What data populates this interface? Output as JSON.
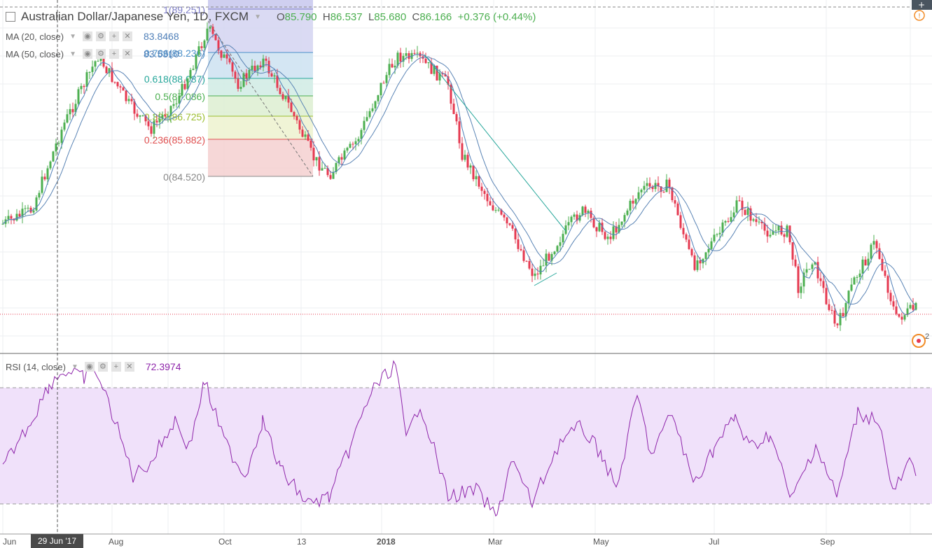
{
  "header": {
    "symbol_title": "Australian Dollar/Japanese Yen, 1D, FXCM",
    "ohlc": {
      "o_label": "O",
      "o": "85.790",
      "h_label": "H",
      "h": "86.537",
      "l_label": "L",
      "l": "85.680",
      "c_label": "C",
      "c": "86.166",
      "change": "+0.376 (+0.44%)"
    }
  },
  "indicators": {
    "ma20": {
      "label": "MA (20, close)",
      "value": "83.8468",
      "color": "#4f7fb8"
    },
    "ma50": {
      "label": "MA (50, close)",
      "value": "83.5310",
      "color": "#4f7fb8"
    },
    "rsi": {
      "label": "RSI (14, close)",
      "value": "72.3974",
      "color": "#8e24aa"
    }
  },
  "fibonacci": {
    "levels": [
      {
        "label": "1(89.251)",
        "price": 89.251,
        "color": "#7e7ec8"
      },
      {
        "label": "0.786(88.236)",
        "price": 88.236,
        "color": "#4a90c8"
      },
      {
        "label": "0.618(88.087)",
        "price": 88.087,
        "color": "#26a69a"
      },
      {
        "label": "0.5(87.086)",
        "price": 87.086,
        "color": "#4caf50"
      },
      {
        "label": "0.382(86.725)",
        "price": 86.725,
        "color": "#9bbd2e"
      },
      {
        "label": "0.236(85.882)",
        "price": 85.882,
        "color": "#e05050"
      },
      {
        "label": "0(84.520)",
        "price": 84.52,
        "color": "#888888"
      }
    ]
  },
  "x_axis": {
    "labels": [
      {
        "text": "Jun"
      },
      {
        "text": "Aug"
      },
      {
        "text": "Oct"
      },
      {
        "text": "13"
      },
      {
        "text": "2018"
      },
      {
        "text": "Mar"
      },
      {
        "text": "May"
      },
      {
        "text": "Jul"
      },
      {
        "text": "Sep"
      }
    ],
    "crosshair_label": "29 Jun '17"
  },
  "corner": {
    "badge_count": "2"
  },
  "colors": {
    "up": "#4caf50",
    "down": "#e53950",
    "rsi_band": "#f0e1fa"
  }
}
